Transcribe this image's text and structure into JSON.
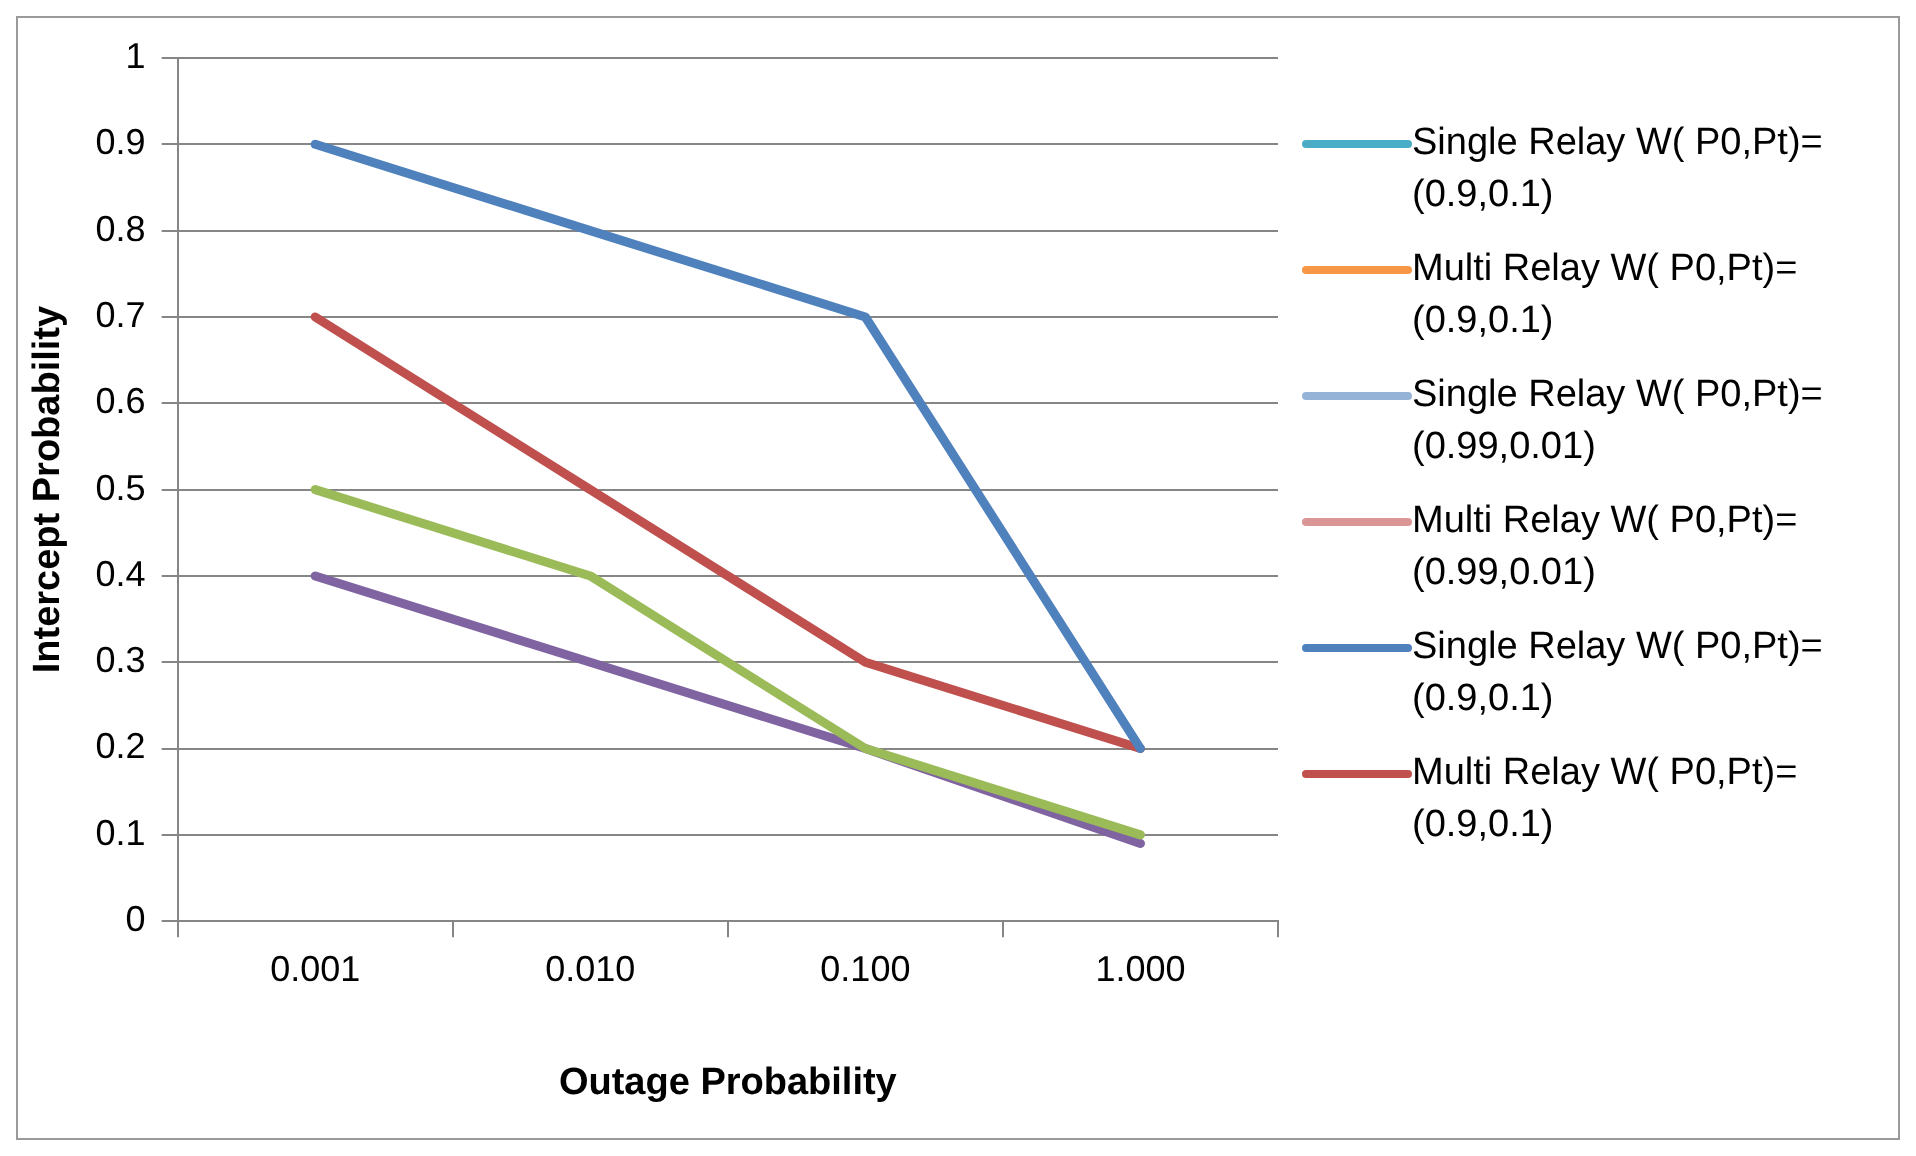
{
  "chart_data": {
    "type": "line",
    "xlabel": "Outage Probability",
    "ylabel": "Intercept Probability",
    "categories": [
      "0.001",
      "0.010",
      "0.100",
      "1.000"
    ],
    "series": [
      {
        "name": "Single Relay W( P0,Pt)=(0.9,0.1)",
        "color": "#4bacc6",
        "values": [
          null,
          null,
          null,
          null
        ]
      },
      {
        "name": "Multi Relay W( P0,Pt)=(0.9,0.1)",
        "color": "#f79646",
        "values": [
          null,
          null,
          null,
          null
        ]
      },
      {
        "name": "Single Relay W( P0,Pt)=(0.99,0.01)",
        "color": "#95b3d7",
        "values": [
          null,
          null,
          null,
          null
        ]
      },
      {
        "name": "Multi Relay W( P0,Pt)=(0.99,0.01)",
        "color": "#d99694",
        "values": [
          null,
          null,
          null,
          null
        ]
      },
      {
        "name": "Single Relay W( P0,Pt)=(0.9,0.1)",
        "color": "#4f81bd",
        "values": [
          0.9,
          0.8,
          0.7,
          0.2
        ]
      },
      {
        "name": "Multi Relay W( P0,Pt)=(0.9,0.1)",
        "color": "#c0504d",
        "values": [
          0.7,
          0.5,
          0.3,
          0.2
        ]
      },
      {
        "color": "#9bbb59",
        "values": [
          0.5,
          0.4,
          0.2,
          0.1
        ]
      },
      {
        "color": "#8064a2",
        "values": [
          0.4,
          0.3,
          0.2,
          0.09
        ]
      }
    ],
    "ylim": [
      0,
      1
    ],
    "yticks": [
      0,
      0.1,
      0.2,
      0.3,
      0.4,
      0.5,
      0.6,
      0.7,
      0.8,
      0.9,
      1
    ],
    "grid": "y",
    "legend": "right",
    "marker": "none",
    "line_style": "solid"
  }
}
